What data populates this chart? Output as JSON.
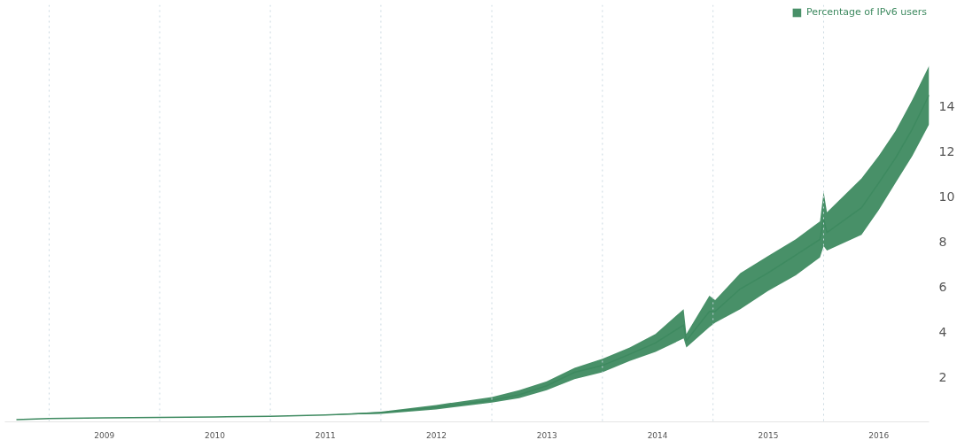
{
  "chart_data": {
    "type": "line",
    "legend": "top right",
    "grid": false,
    "marker": "none",
    "line_style": "solid",
    "xlim": [
      "2008-08-08",
      "2016-12-14"
    ],
    "ylim": [
      0,
      18.5
    ],
    "yticks": [
      2,
      4,
      6,
      8,
      10,
      12,
      14
    ],
    "xticks": [
      {
        "value": "2009-07-02",
        "label": "2009"
      },
      {
        "value": "2010-07-02",
        "label": "2010"
      },
      {
        "value": "2011-07-02",
        "label": "2011"
      },
      {
        "value": "2012-07-02",
        "label": "2012"
      },
      {
        "value": "2013-07-02",
        "label": "2013"
      },
      {
        "value": "2014-07-02",
        "label": "2014"
      },
      {
        "value": "2015-07-02",
        "label": "2015"
      },
      {
        "value": "2016-07-01",
        "label": "2016"
      }
    ],
    "ref_lines": [
      {
        "axis": "x",
        "value": "2009-01-01",
        "label": null,
        "color": "#c9d8e0",
        "line_style": "dotted"
      },
      {
        "axis": "x",
        "value": "2010-01-01",
        "label": null,
        "color": "#c9d8e0",
        "line_style": "dotted"
      },
      {
        "axis": "x",
        "value": "2011-01-01",
        "label": null,
        "color": "#c9d8e0",
        "line_style": "dotted"
      },
      {
        "axis": "x",
        "value": "2012-01-01",
        "label": null,
        "color": "#c9d8e0",
        "line_style": "dotted"
      },
      {
        "axis": "x",
        "value": "2013-01-01",
        "label": null,
        "color": "#c9d8e0",
        "line_style": "dotted"
      },
      {
        "axis": "x",
        "value": "2014-01-01",
        "label": null,
        "color": "#c9d8e0",
        "line_style": "dotted"
      },
      {
        "axis": "x",
        "value": "2015-01-01",
        "label": null,
        "color": "#c9d8e0",
        "line_style": "dotted"
      },
      {
        "axis": "x",
        "value": "2016-01-01",
        "label": null,
        "color": "#c9d8e0",
        "line_style": "dotted"
      }
    ],
    "x": [
      "2008-09-15",
      "2009-01-01",
      "2009-07-01",
      "2010-01-01",
      "2010-07-01",
      "2011-01-01",
      "2011-07-01",
      "2012-01-01",
      "2012-07-01",
      "2013-01-01",
      "2013-04-01",
      "2013-07-01",
      "2013-10-01",
      "2014-01-01",
      "2014-04-01",
      "2014-06-25",
      "2014-09-26",
      "2014-10-05",
      "2014-12-20",
      "2015-01-08",
      "2015-04-01",
      "2015-07-01",
      "2015-10-01",
      "2015-12-20",
      "2016-01-01",
      "2016-01-12",
      "2016-05-05",
      "2016-07-01",
      "2016-08-25",
      "2016-10-20",
      "2016-12-14"
    ],
    "series": [
      {
        "name": "Percentage of IPv6 users",
        "color": "#3e8a60",
        "values": [
          0.1,
          0.15,
          0.18,
          0.2,
          0.22,
          0.25,
          0.3,
          0.4,
          0.65,
          0.95,
          1.2,
          1.6,
          2.2,
          2.5,
          3.0,
          3.5,
          4.3,
          3.6,
          4.9,
          4.9,
          5.9,
          6.6,
          7.4,
          8.1,
          9.0,
          8.4,
          9.5,
          10.6,
          11.7,
          13.0,
          14.5
        ],
        "lower": [
          0.1,
          0.15,
          0.18,
          0.2,
          0.22,
          0.25,
          0.3,
          0.35,
          0.55,
          0.85,
          1.05,
          1.4,
          1.9,
          2.2,
          2.7,
          3.1,
          3.7,
          3.3,
          4.2,
          4.4,
          5.0,
          5.8,
          6.5,
          7.3,
          7.8,
          7.6,
          8.3,
          9.4,
          10.6,
          11.8,
          13.2
        ],
        "upper": [
          0.1,
          0.15,
          0.18,
          0.2,
          0.22,
          0.25,
          0.3,
          0.45,
          0.75,
          1.1,
          1.4,
          1.8,
          2.4,
          2.8,
          3.3,
          3.9,
          5.0,
          3.9,
          5.6,
          5.4,
          6.6,
          7.35,
          8.1,
          8.9,
          10.2,
          9.3,
          10.8,
          11.8,
          12.9,
          14.3,
          15.8
        ]
      }
    ]
  }
}
